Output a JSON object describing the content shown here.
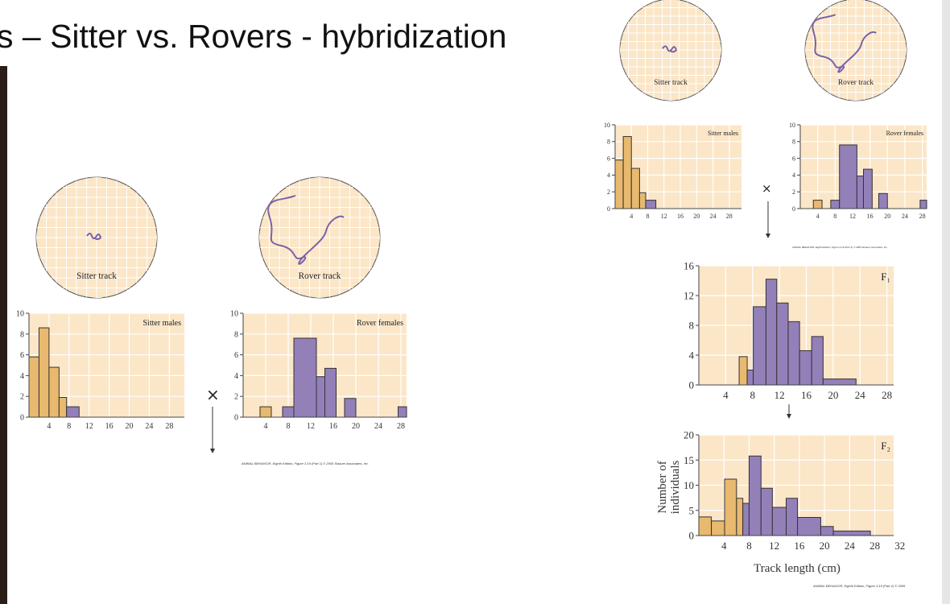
{
  "slide": {
    "title": "s – Sitter vs. Rovers - hybridization",
    "cross_symbol": "×",
    "caption_part1": "ANIMAL BEHAVIOR, Eighth Edition, Figure 3.19 (Part 1) © 2005 Sinauer Associates, Inc.",
    "caption_part2": "ANIMAL BEHAVIOR, Eighth Edition, Figure 3.19 (Part 2) © 2005",
    "sitter_track_label": "Sitter track",
    "rover_track_label": "Rover track",
    "colors": {
      "sitter": "#e8b96e",
      "rover": "#9380b9",
      "plot_bg": "#fbe6c8",
      "grid": "#ffffff",
      "track_bg": "#fbe6c8"
    }
  },
  "chart_data": [
    {
      "id": "sitter-males",
      "type": "bar",
      "title": "Sitter males",
      "xlim": [
        0,
        31
      ],
      "ylim": [
        0,
        10
      ],
      "xticks": [
        4,
        8,
        12,
        16,
        20,
        24,
        28
      ],
      "yticks": [
        0,
        2,
        4,
        6,
        8,
        10
      ],
      "bins": [
        [
          0,
          2,
          5.8,
          "sitter"
        ],
        [
          2,
          4,
          8.6,
          "sitter"
        ],
        [
          4,
          6,
          4.8,
          "sitter"
        ],
        [
          6,
          7.5,
          1.9,
          "sitter"
        ],
        [
          7.5,
          10,
          1,
          "rover"
        ]
      ]
    },
    {
      "id": "rover-females",
      "type": "bar",
      "title": "Rover females",
      "xlim": [
        0,
        29
      ],
      "ylim": [
        0,
        10
      ],
      "xticks": [
        4,
        8,
        12,
        16,
        20,
        24,
        28
      ],
      "yticks": [
        0,
        2,
        4,
        6,
        8,
        10
      ],
      "bins": [
        [
          3,
          5,
          1,
          "sitter"
        ],
        [
          7,
          9,
          1,
          "rover"
        ],
        [
          9,
          13,
          7.6,
          "rover"
        ],
        [
          13,
          14.5,
          3.9,
          "rover"
        ],
        [
          14.5,
          16.5,
          4.7,
          "rover"
        ],
        [
          18,
          20,
          1.8,
          "rover"
        ],
        [
          27.5,
          29,
          1,
          "rover"
        ]
      ]
    },
    {
      "id": "f1",
      "type": "bar",
      "title": "F₁",
      "xlim": [
        0,
        29
      ],
      "ylim": [
        0,
        16
      ],
      "xticks": [
        4,
        8,
        12,
        16,
        20,
        24,
        28
      ],
      "yticks": [
        0,
        4,
        8,
        12,
        16
      ],
      "bins": [
        [
          6,
          7.2,
          3.8,
          "sitter"
        ],
        [
          7.2,
          8.1,
          2,
          "rover"
        ],
        [
          8.1,
          10,
          10.5,
          "rover"
        ],
        [
          10,
          11.6,
          14.2,
          "rover"
        ],
        [
          11.6,
          13.3,
          11,
          "rover"
        ],
        [
          13.3,
          15,
          8.5,
          "rover"
        ],
        [
          15,
          16.8,
          4.6,
          "rover"
        ],
        [
          16.8,
          18.5,
          6.5,
          "rover"
        ],
        [
          18.5,
          23.4,
          0.8,
          "rover"
        ]
      ]
    },
    {
      "id": "f2",
      "type": "bar",
      "title": "F₂",
      "xlabel": "Track length (cm)",
      "ylabel": "Number of individuals",
      "xlim": [
        0,
        31
      ],
      "ylim": [
        0,
        20
      ],
      "xticks": [
        4,
        8,
        12,
        16,
        20,
        24,
        28,
        32
      ],
      "yticks": [
        0,
        5,
        10,
        15,
        20
      ],
      "bins": [
        [
          0,
          2,
          3.7,
          "sitter"
        ],
        [
          2,
          4.1,
          2.9,
          "sitter"
        ],
        [
          4.1,
          6,
          11.2,
          "sitter"
        ],
        [
          6,
          7,
          7.4,
          "sitter"
        ],
        [
          7,
          8,
          6.4,
          "rover"
        ],
        [
          8,
          9.9,
          15.8,
          "rover"
        ],
        [
          9.9,
          11.7,
          9.4,
          "rover"
        ],
        [
          11.7,
          13.9,
          5.6,
          "rover"
        ],
        [
          13.9,
          15.7,
          7.4,
          "rover"
        ],
        [
          15.7,
          19.4,
          3.6,
          "rover"
        ],
        [
          19.4,
          21.4,
          1.8,
          "rover"
        ],
        [
          21.4,
          27.3,
          0.9,
          "rover"
        ]
      ]
    }
  ]
}
